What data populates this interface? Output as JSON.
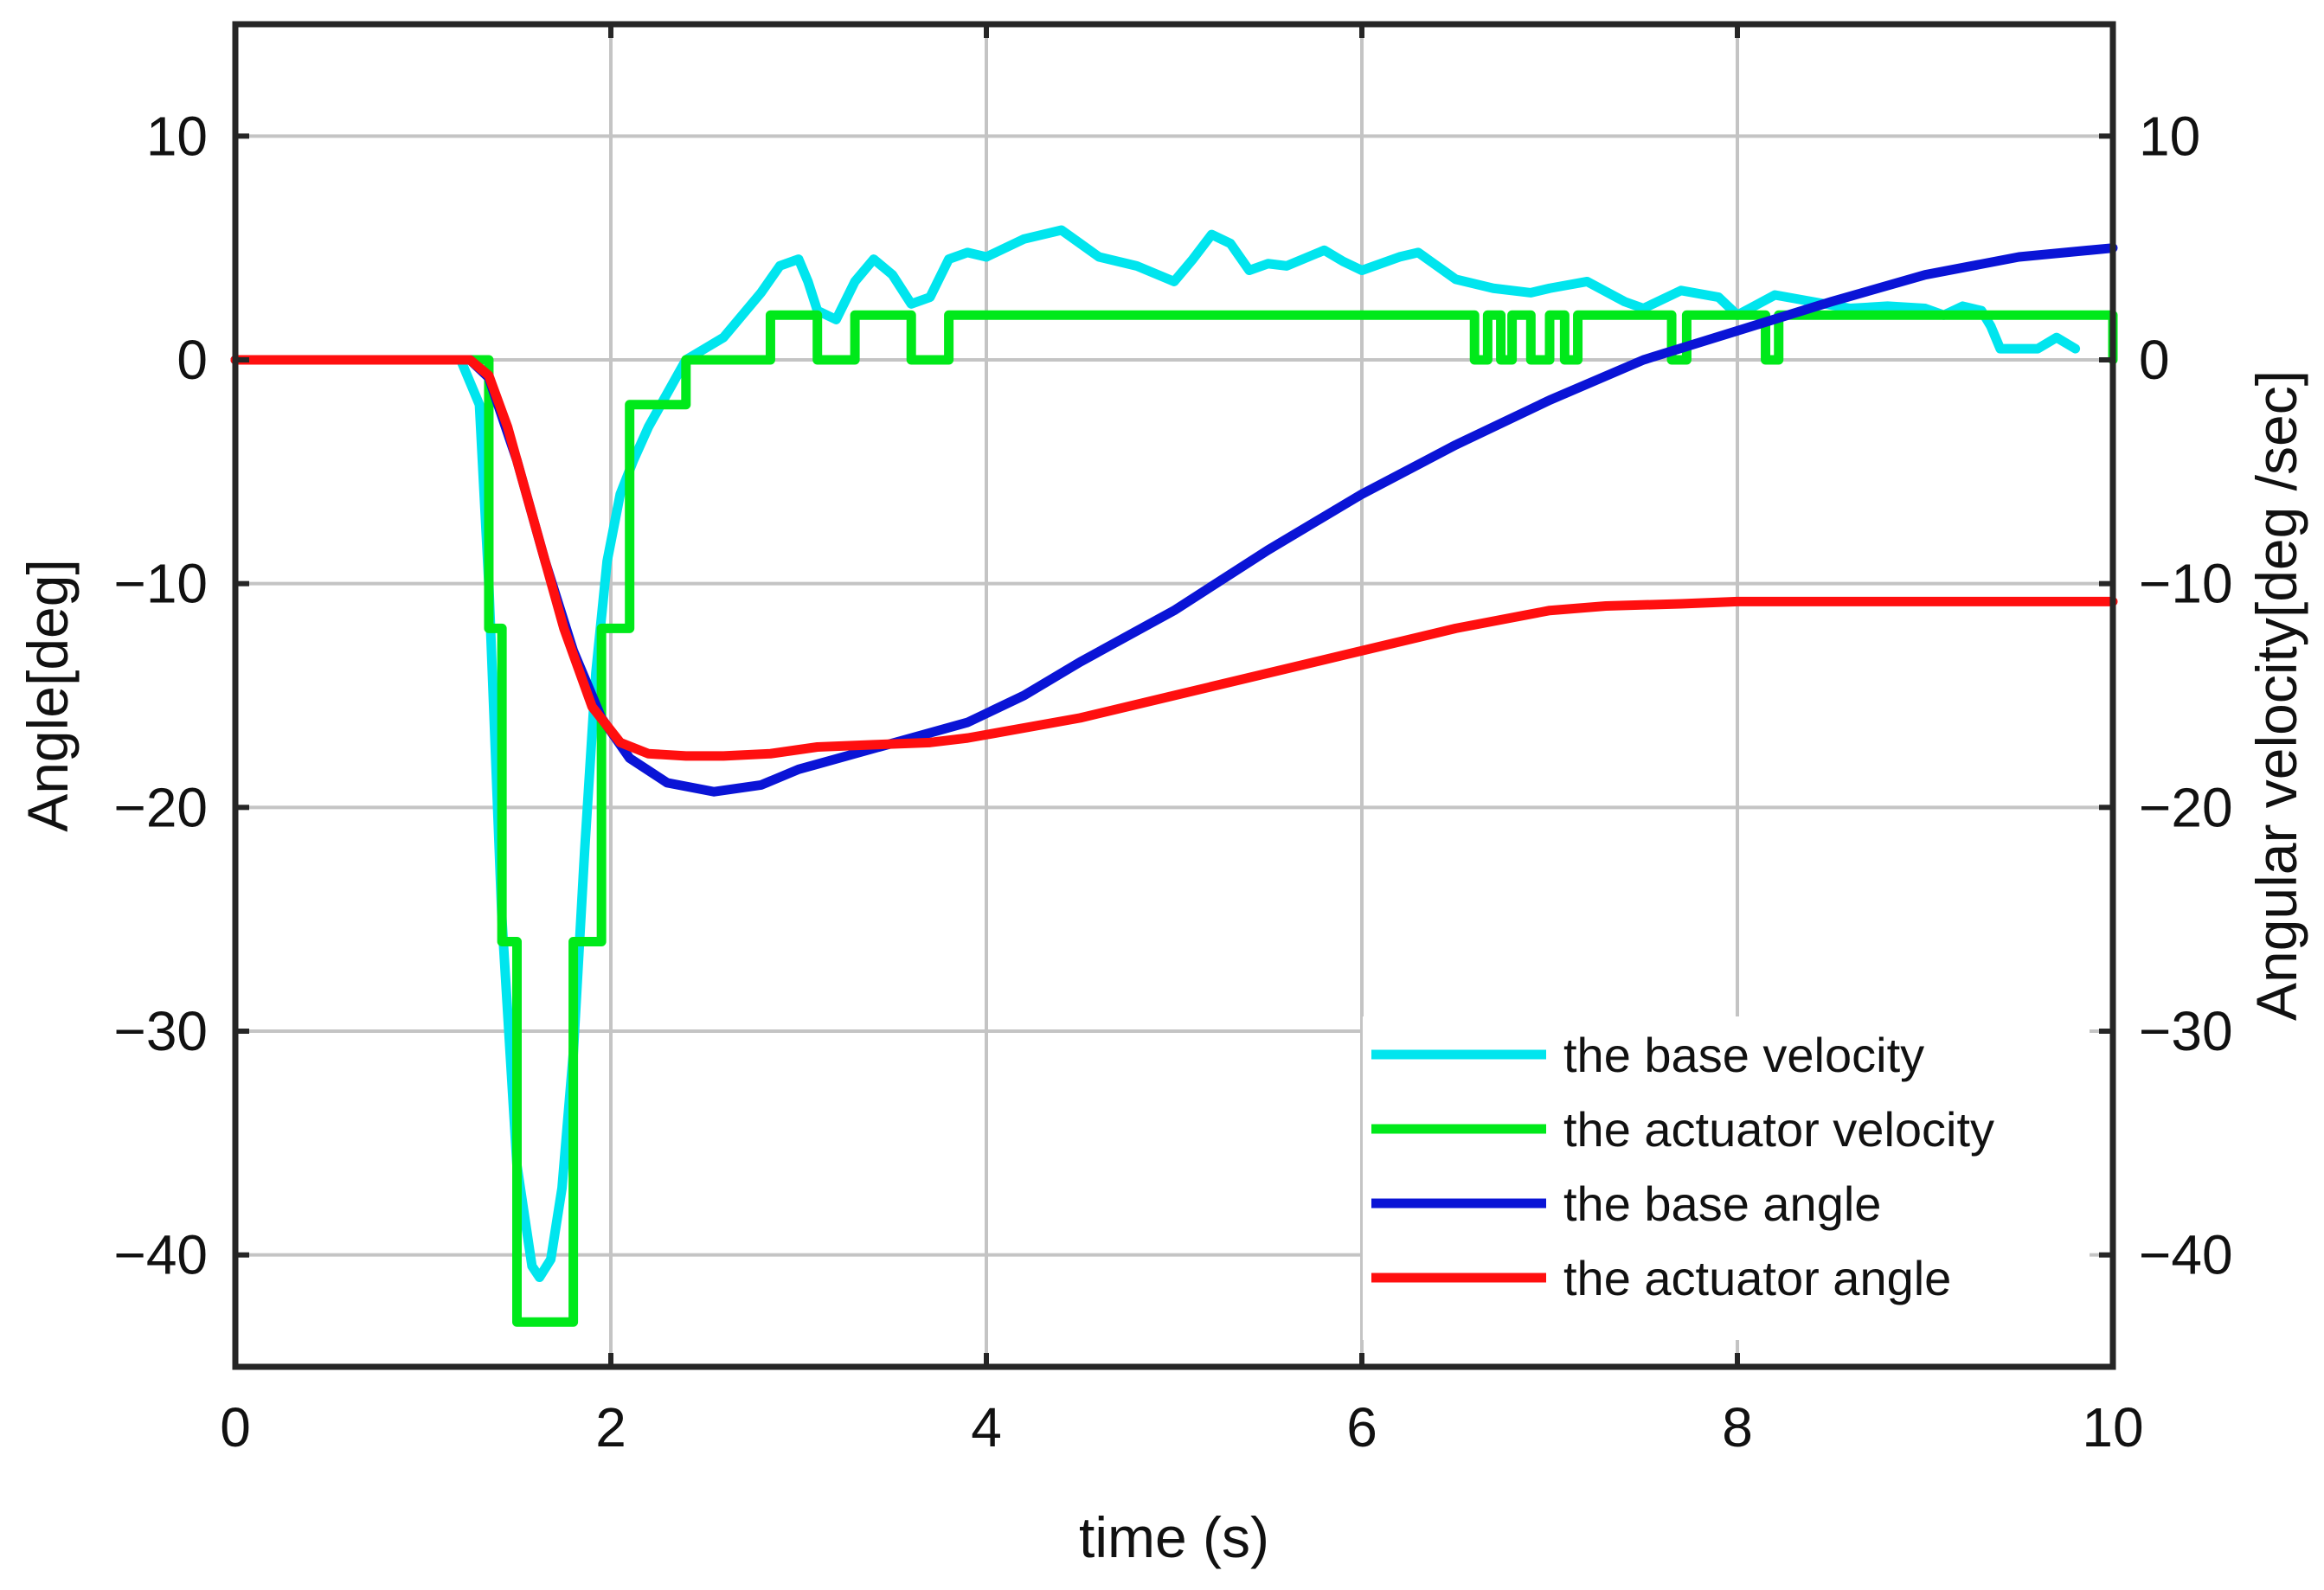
{
  "chart_data": {
    "type": "line",
    "title": "",
    "xlabel": "time (s)",
    "ylabel": "Angle[deg]",
    "y2label": "Angular velocity[deg /sec]",
    "xlim": [
      0,
      10
    ],
    "ylim": [
      -45,
      15
    ],
    "y2lim": [
      -45,
      15
    ],
    "xticks": [
      0,
      2,
      4,
      6,
      8,
      10
    ],
    "yticks": [
      10,
      0,
      -10,
      -20,
      -30,
      -40
    ],
    "xtick_labels": [
      "0",
      "2",
      "4",
      "6",
      "8",
      "10"
    ],
    "ytick_labels": [
      "10",
      "0",
      "−10",
      "−20",
      "−30",
      "−40"
    ],
    "y2tick_labels": [
      "10",
      "0",
      "−10",
      "−20",
      "−30",
      "−40"
    ],
    "grid": true,
    "legend_position": "bottom-right",
    "series": [
      {
        "name": "the base velocity",
        "color": "#00e5ee",
        "axis": "right",
        "x": [
          0,
          1.2,
          1.3,
          1.35,
          1.42,
          1.5,
          1.58,
          1.62,
          1.68,
          1.74,
          1.8,
          1.86,
          1.92,
          1.98,
          2.05,
          2.12,
          2.2,
          2.3,
          2.4,
          2.5,
          2.6,
          2.7,
          2.8,
          2.9,
          3.0,
          3.05,
          3.1,
          3.2,
          3.3,
          3.4,
          3.5,
          3.6,
          3.7,
          3.8,
          3.9,
          4.0,
          4.2,
          4.4,
          4.5,
          4.6,
          4.8,
          5.0,
          5.1,
          5.2,
          5.3,
          5.4,
          5.5,
          5.6,
          5.8,
          5.9,
          6.0,
          6.2,
          6.3,
          6.5,
          6.7,
          6.9,
          7.0,
          7.2,
          7.4,
          7.5,
          7.7,
          7.9,
          8.0,
          8.2,
          8.4,
          8.6,
          8.8,
          9.0,
          9.1,
          9.2,
          9.3,
          9.35,
          9.4,
          9.6,
          9.7,
          9.8
        ],
        "values": [
          0,
          0,
          -2,
          -10,
          -25,
          -36,
          -40.5,
          -41,
          -40.2,
          -37,
          -31,
          -22,
          -14,
          -9,
          -6,
          -4.5,
          -3,
          -1.5,
          0,
          0.5,
          1,
          2,
          3,
          4.2,
          4.5,
          3.5,
          2.2,
          1.8,
          3.5,
          4.5,
          3.8,
          2.5,
          2.8,
          4.5,
          4.8,
          4.6,
          5.4,
          5.8,
          5.2,
          4.6,
          4.2,
          3.5,
          4.5,
          5.6,
          5.2,
          4.0,
          4.3,
          4.2,
          4.9,
          4.4,
          4.0,
          4.6,
          4.8,
          3.6,
          3.2,
          3.0,
          3.2,
          3.5,
          2.6,
          2.3,
          3.1,
          2.8,
          2.0,
          2.9,
          2.6,
          2.3,
          2.4,
          2.3,
          2.0,
          2.4,
          2.2,
          1.5,
          0.5,
          0.5,
          1.0,
          0.5
        ]
      },
      {
        "name": "the actuator velocity",
        "color": "#00e91a",
        "axis": "right",
        "step": true,
        "x": [
          0,
          1.35,
          1.42,
          1.5,
          1.58,
          1.8,
          1.95,
          2.1,
          2.4,
          2.85,
          3.1,
          3.3,
          3.6,
          3.8,
          6.6,
          6.67,
          6.74,
          6.8,
          6.9,
          7.0,
          7.08,
          7.15,
          7.65,
          7.73,
          8.15,
          8.22,
          10
        ],
        "values": [
          0,
          -12,
          -26,
          -43,
          -43,
          -26,
          -12,
          -2,
          0,
          2,
          0,
          2,
          0,
          2,
          0,
          2,
          0,
          2,
          0,
          2,
          0,
          2,
          0,
          2,
          0,
          2,
          0
        ]
      },
      {
        "name": "the base angle",
        "color": "#0a14d6",
        "axis": "left",
        "x": [
          0,
          1.25,
          1.35,
          1.5,
          1.65,
          1.8,
          1.95,
          2.1,
          2.3,
          2.55,
          2.8,
          3.0,
          3.3,
          3.6,
          3.9,
          4.2,
          4.5,
          5.0,
          5.5,
          6.0,
          6.5,
          7.0,
          7.5,
          8.0,
          8.5,
          9.0,
          9.5,
          10
        ],
        "values": [
          0,
          0,
          -0.8,
          -4.5,
          -9,
          -13,
          -16,
          -17.8,
          -18.9,
          -19.3,
          -19,
          -18.3,
          -17.6,
          -16.9,
          -16.2,
          -15,
          -13.5,
          -11.2,
          -8.5,
          -6,
          -3.8,
          -1.8,
          0,
          1.3,
          2.6,
          3.8,
          4.6,
          5
        ]
      },
      {
        "name": "the actuator angle",
        "color": "#ff0f0f",
        "axis": "left",
        "x": [
          0,
          1.25,
          1.35,
          1.45,
          1.6,
          1.75,
          1.9,
          2.05,
          2.2,
          2.4,
          2.6,
          2.85,
          3.1,
          3.4,
          3.7,
          3.9,
          4.5,
          5.0,
          5.5,
          6.0,
          6.5,
          7.0,
          7.3,
          7.7,
          8.0,
          8.5,
          9.0,
          9.5,
          10
        ],
        "values": [
          0,
          0,
          -0.7,
          -3,
          -7.5,
          -12,
          -15.5,
          -17.1,
          -17.6,
          -17.7,
          -17.7,
          -17.6,
          -17.3,
          -17.2,
          -17.1,
          -16.9,
          -16,
          -15,
          -14,
          -13,
          -12,
          -11.2,
          -11,
          -10.9,
          -10.8,
          -10.8,
          -10.8,
          -10.8,
          -10.8
        ]
      }
    ]
  }
}
